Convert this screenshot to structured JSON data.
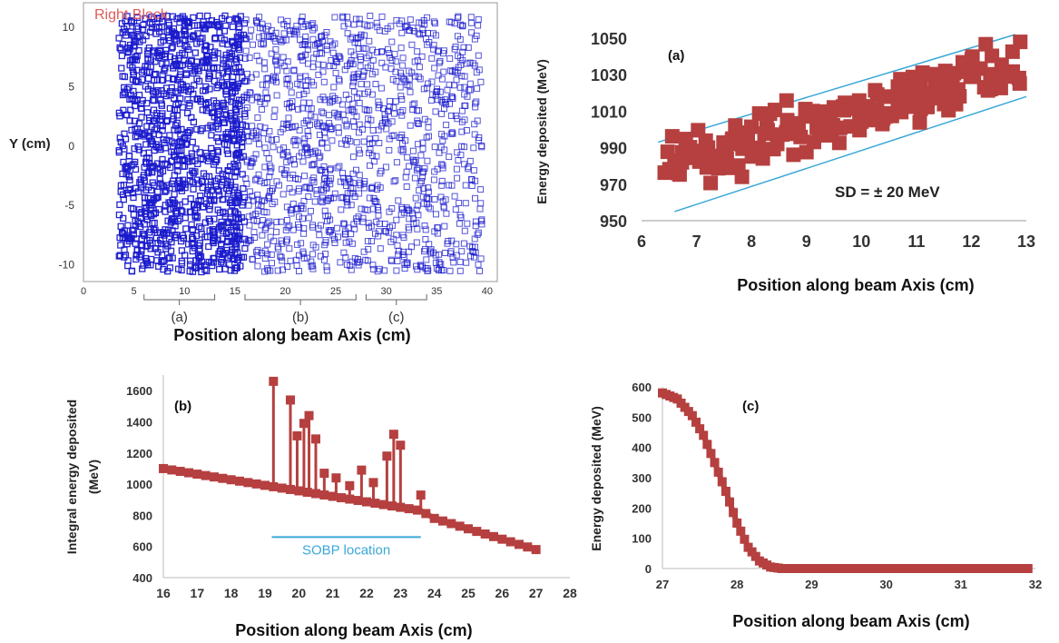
{
  "chart_data": [
    {
      "id": "scatter-y",
      "type": "scatter",
      "title": "Right Block",
      "xlabel": "Position along beam Axis (cm)",
      "ylabel": "Y (cm)",
      "xlim": [
        0,
        41
      ],
      "ylim": [
        -11.5,
        12
      ],
      "xticks": [
        0,
        5,
        10,
        15,
        20,
        25,
        30,
        35,
        40
      ],
      "yticks": [
        -10,
        -5,
        0,
        5,
        10
      ],
      "marker": "open-square",
      "color": "#1a1acc",
      "region_labels": [
        {
          "label": "(a)",
          "range": [
            6,
            13
          ]
        },
        {
          "label": "(b)",
          "range": [
            16,
            27
          ]
        },
        {
          "label": "(c)",
          "range": [
            28,
            34
          ]
        }
      ]
    },
    {
      "id": "panel-a",
      "type": "scatter",
      "annotation": "(a)",
      "xlabel": "Position along beam Axis (cm)",
      "ylabel": "Energy deposited (MeV)",
      "xlim": [
        6,
        13
      ],
      "ylim": [
        950,
        1050
      ],
      "xticks": [
        6,
        7,
        8,
        9,
        10,
        11,
        12,
        13
      ],
      "yticks": [
        950,
        970,
        990,
        1010,
        1030,
        1050
      ],
      "color": "#b5403f",
      "band_color": "#3aa8d8",
      "sd_label": "SD = ± 20 MeV",
      "bands": [
        {
          "x": [
            6.3,
            12.8
          ],
          "y": [
            993,
            1052
          ]
        },
        {
          "x": [
            6.6,
            13.0
          ],
          "y": [
            955,
            1018
          ]
        }
      ],
      "trend": {
        "x": [
          6.4,
          12.9
        ],
        "y": [
          978,
          1035
        ]
      }
    },
    {
      "id": "panel-b",
      "type": "line",
      "annotation": "(b)",
      "xlabel": "Position along beam Axis (cm)",
      "ylabel": "Integral energy deposited (MeV)",
      "xlim": [
        16,
        28
      ],
      "ylim": [
        400,
        1700
      ],
      "xticks": [
        16,
        17,
        18,
        19,
        20,
        21,
        22,
        23,
        24,
        25,
        26,
        27,
        28
      ],
      "yticks": [
        400,
        600,
        800,
        1000,
        1200,
        1400,
        1600
      ],
      "color": "#b5403f",
      "sobp_label": "SOBP location",
      "sobp_range": [
        19.2,
        23.6
      ],
      "sobp_y": 660,
      "baseline": [
        [
          16,
          1100
        ],
        [
          19.2,
          985
        ],
        [
          23.6,
          830
        ],
        [
          24,
          780
        ],
        [
          27,
          580
        ]
      ],
      "spikes": [
        {
          "x": 19.25,
          "y": 1660
        },
        {
          "x": 19.75,
          "y": 1540
        },
        {
          "x": 19.95,
          "y": 1310
        },
        {
          "x": 20.15,
          "y": 1390
        },
        {
          "x": 20.3,
          "y": 1440
        },
        {
          "x": 20.5,
          "y": 1290
        },
        {
          "x": 20.75,
          "y": 1070
        },
        {
          "x": 21.1,
          "y": 1040
        },
        {
          "x": 21.5,
          "y": 990
        },
        {
          "x": 21.85,
          "y": 1090
        },
        {
          "x": 22.2,
          "y": 1010
        },
        {
          "x": 22.6,
          "y": 1180
        },
        {
          "x": 22.8,
          "y": 1320
        },
        {
          "x": 23.0,
          "y": 1250
        },
        {
          "x": 23.6,
          "y": 930
        }
      ]
    },
    {
      "id": "panel-c",
      "type": "line",
      "annotation": "(c)",
      "xlabel": "Position along beam Axis (cm)",
      "ylabel": "Energy deposited (MeV)",
      "xlim": [
        27,
        32
      ],
      "ylim": [
        0,
        600
      ],
      "xticks": [
        27,
        28,
        29,
        30,
        31,
        32
      ],
      "yticks": [
        0,
        100,
        200,
        300,
        400,
        500,
        600
      ],
      "color": "#b5403f",
      "curve": [
        [
          27.0,
          580
        ],
        [
          27.2,
          560
        ],
        [
          27.4,
          505
        ],
        [
          27.55,
          440
        ],
        [
          27.7,
          350
        ],
        [
          27.85,
          255
        ],
        [
          28.0,
          150
        ],
        [
          28.15,
          70
        ],
        [
          28.3,
          25
        ],
        [
          28.45,
          5
        ],
        [
          28.6,
          0
        ],
        [
          31.9,
          0
        ]
      ]
    }
  ]
}
